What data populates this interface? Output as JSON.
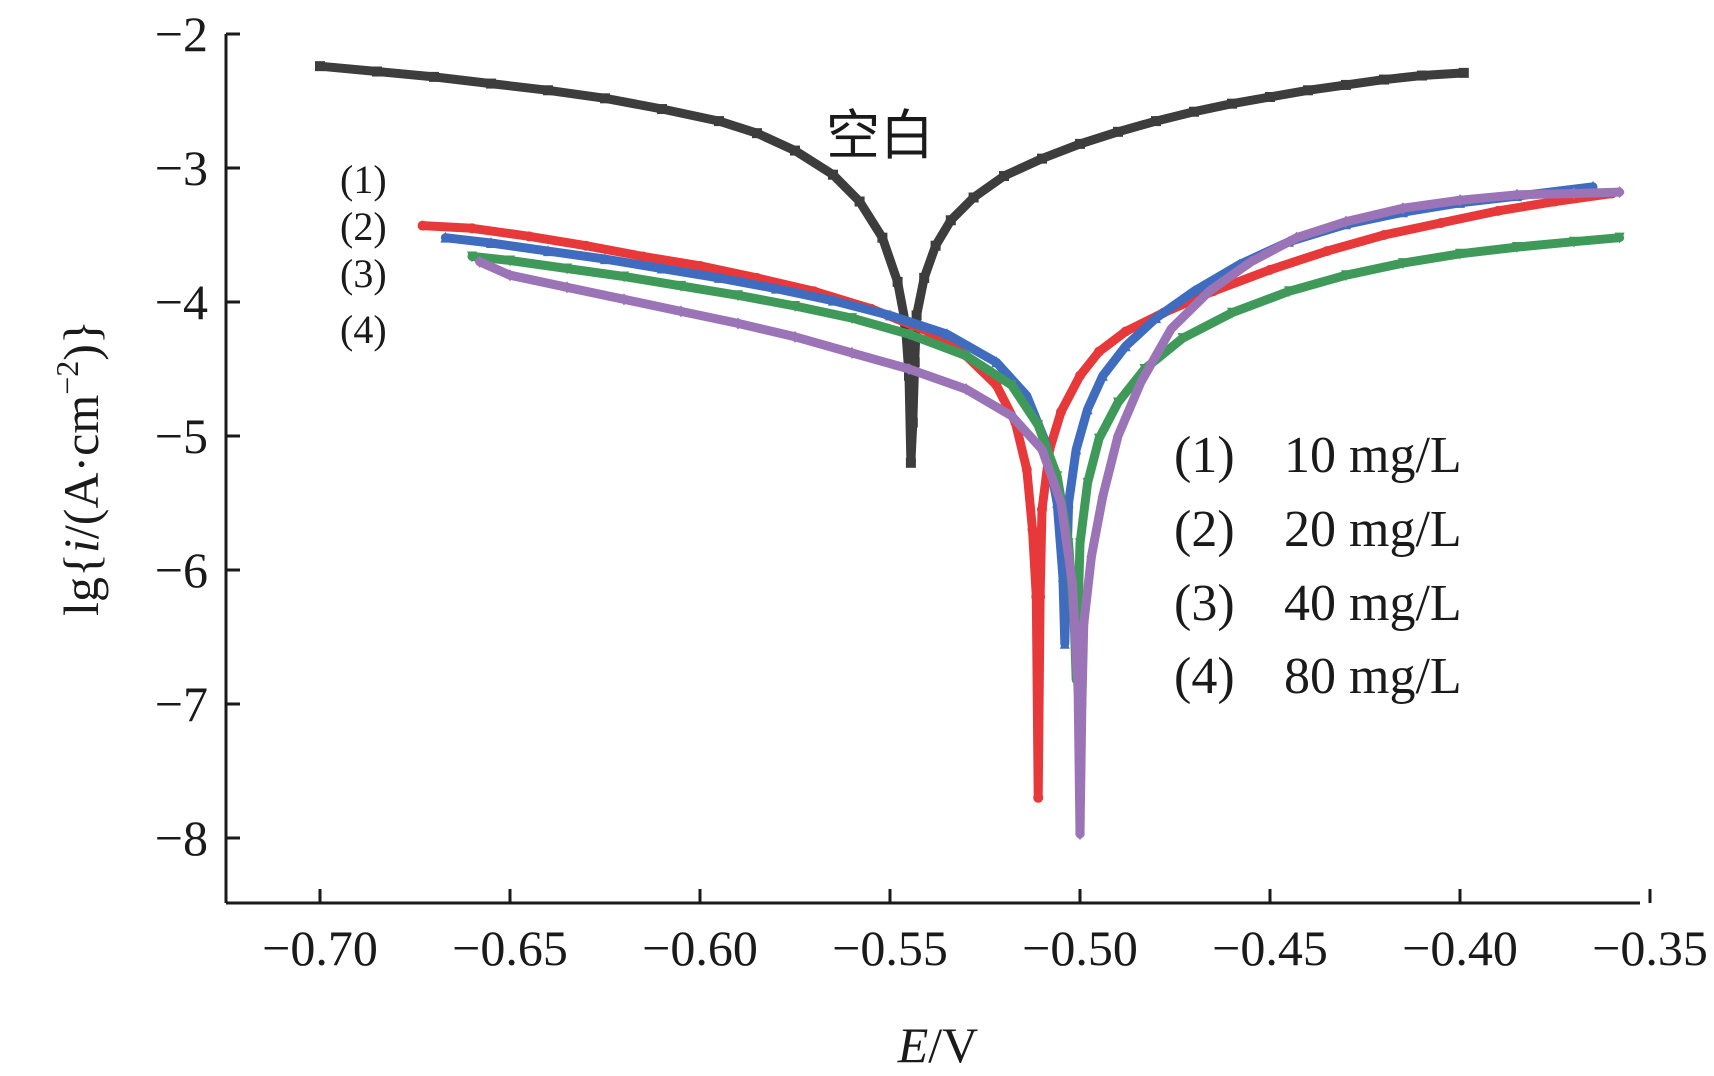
{
  "chart_data": {
    "type": "line",
    "title": "",
    "xlabel_italic": "E",
    "xlabel_unit": "/V",
    "ylabel_prefix": "lg{",
    "ylabel_italic": "i",
    "ylabel_mid": "/(A·cm",
    "ylabel_sup": "−2",
    "ylabel_suffix": ")}",
    "xlim": [
      -0.725,
      -0.35
    ],
    "ylim": [
      -8.5,
      -2
    ],
    "xticks": [
      -0.7,
      -0.65,
      -0.6,
      -0.55,
      -0.5,
      -0.45,
      -0.4,
      -0.35
    ],
    "xtick_labels": [
      "−0.70",
      "−0.65",
      "−0.60",
      "−0.55",
      "−0.50",
      "−0.45",
      "−0.40",
      "−0.35"
    ],
    "yticks": [
      -2,
      -3,
      -4,
      -5,
      -6,
      -7,
      -8
    ],
    "ytick_labels": [
      "−2",
      "−3",
      "−4",
      "−5",
      "−6",
      "−7",
      "−8"
    ],
    "curve_label": "空白",
    "side_labels": [
      "(1)",
      "(2)",
      "(3)",
      "(4)"
    ],
    "legend": [
      {
        "key": "(1)",
        "text": "10 mg/L"
      },
      {
        "key": "(2)",
        "text": "20 mg/L"
      },
      {
        "key": "(3)",
        "text": "40 mg/L"
      },
      {
        "key": "(4)",
        "text": "80 mg/L"
      }
    ],
    "series": [
      {
        "name": "空白",
        "color": "#3d3d3d",
        "marker": "square",
        "x": [
          -0.7,
          -0.685,
          -0.67,
          -0.655,
          -0.64,
          -0.625,
          -0.61,
          -0.595,
          -0.585,
          -0.575,
          -0.565,
          -0.558,
          -0.552,
          -0.548,
          -0.546,
          -0.545,
          -0.5445,
          -0.544,
          -0.5435,
          -0.543,
          -0.541,
          -0.538,
          -0.534,
          -0.528,
          -0.52,
          -0.51,
          -0.5,
          -0.49,
          -0.48,
          -0.47,
          -0.46,
          -0.45,
          -0.44,
          -0.43,
          -0.42,
          -0.41,
          -0.399
        ],
        "y": [
          -2.24,
          -2.28,
          -2.32,
          -2.37,
          -2.42,
          -2.48,
          -2.56,
          -2.65,
          -2.74,
          -2.87,
          -3.05,
          -3.25,
          -3.52,
          -3.85,
          -4.15,
          -4.55,
          -5.2,
          -4.9,
          -4.45,
          -4.1,
          -3.82,
          -3.58,
          -3.39,
          -3.22,
          -3.06,
          -2.93,
          -2.82,
          -2.73,
          -2.65,
          -2.58,
          -2.52,
          -2.47,
          -2.42,
          -2.38,
          -2.34,
          -2.31,
          -2.29
        ]
      },
      {
        "name": "(1) 10 mg/L",
        "color": "#e8393a",
        "marker": "circle",
        "x": [
          -0.673,
          -0.66,
          -0.645,
          -0.63,
          -0.615,
          -0.6,
          -0.585,
          -0.57,
          -0.555,
          -0.54,
          -0.53,
          -0.522,
          -0.517,
          -0.514,
          -0.5125,
          -0.5115,
          -0.511,
          -0.5105,
          -0.51,
          -0.508,
          -0.505,
          -0.5,
          -0.495,
          -0.488,
          -0.478,
          -0.465,
          -0.45,
          -0.435,
          -0.42,
          -0.405,
          -0.39,
          -0.375,
          -0.36
        ],
        "y": [
          -3.43,
          -3.45,
          -3.51,
          -3.58,
          -3.66,
          -3.73,
          -3.82,
          -3.92,
          -4.05,
          -4.22,
          -4.4,
          -4.62,
          -4.9,
          -5.25,
          -5.7,
          -6.2,
          -7.7,
          -6.2,
          -5.55,
          -5.1,
          -4.82,
          -4.55,
          -4.37,
          -4.22,
          -4.08,
          -3.92,
          -3.76,
          -3.62,
          -3.5,
          -3.41,
          -3.32,
          -3.25,
          -3.19
        ]
      },
      {
        "name": "(2) 20 mg/L",
        "color": "#3f6cbf",
        "marker": "triangle",
        "x": [
          -0.667,
          -0.655,
          -0.64,
          -0.625,
          -0.61,
          -0.595,
          -0.58,
          -0.565,
          -0.55,
          -0.535,
          -0.522,
          -0.514,
          -0.509,
          -0.506,
          -0.5045,
          -0.504,
          -0.5035,
          -0.503,
          -0.501,
          -0.498,
          -0.494,
          -0.488,
          -0.48,
          -0.47,
          -0.458,
          -0.445,
          -0.43,
          -0.415,
          -0.4,
          -0.385,
          -0.365
        ],
        "y": [
          -3.52,
          -3.56,
          -3.62,
          -3.68,
          -3.75,
          -3.82,
          -3.9,
          -3.99,
          -4.1,
          -4.24,
          -4.45,
          -4.7,
          -5.05,
          -5.5,
          -6.05,
          -6.55,
          -6.0,
          -5.5,
          -5.1,
          -4.8,
          -4.55,
          -4.33,
          -4.12,
          -3.92,
          -3.72,
          -3.55,
          -3.42,
          -3.33,
          -3.26,
          -3.21,
          -3.14
        ]
      },
      {
        "name": "(3) 40 mg/L",
        "color": "#3f9a5a",
        "marker": "triangle-down",
        "x": [
          -0.66,
          -0.65,
          -0.635,
          -0.62,
          -0.605,
          -0.59,
          -0.575,
          -0.56,
          -0.545,
          -0.53,
          -0.518,
          -0.511,
          -0.506,
          -0.503,
          -0.5015,
          -0.501,
          -0.5005,
          -0.5,
          -0.498,
          -0.495,
          -0.49,
          -0.483,
          -0.473,
          -0.46,
          -0.445,
          -0.43,
          -0.415,
          -0.4,
          -0.385,
          -0.37,
          -0.358
        ],
        "y": [
          -3.66,
          -3.69,
          -3.75,
          -3.81,
          -3.88,
          -3.95,
          -4.03,
          -4.12,
          -4.24,
          -4.4,
          -4.62,
          -4.92,
          -5.3,
          -5.8,
          -6.4,
          -6.82,
          -6.3,
          -5.8,
          -5.35,
          -5.02,
          -4.75,
          -4.5,
          -4.27,
          -4.08,
          -3.92,
          -3.8,
          -3.71,
          -3.64,
          -3.59,
          -3.55,
          -3.52
        ]
      },
      {
        "name": "(4) 80 mg/L",
        "color": "#9b74b8",
        "marker": "diamond",
        "x": [
          -0.658,
          -0.65,
          -0.635,
          -0.62,
          -0.605,
          -0.59,
          -0.575,
          -0.56,
          -0.545,
          -0.53,
          -0.518,
          -0.51,
          -0.505,
          -0.502,
          -0.5005,
          -0.5,
          -0.4995,
          -0.499,
          -0.497,
          -0.494,
          -0.49,
          -0.484,
          -0.476,
          -0.466,
          -0.455,
          -0.443,
          -0.43,
          -0.415,
          -0.4,
          -0.385,
          -0.37,
          -0.358
        ],
        "y": [
          -3.7,
          -3.8,
          -3.89,
          -3.98,
          -4.07,
          -4.16,
          -4.26,
          -4.38,
          -4.5,
          -4.65,
          -4.85,
          -5.1,
          -5.5,
          -6.1,
          -6.9,
          -7.97,
          -7.0,
          -6.4,
          -5.9,
          -5.45,
          -5.0,
          -4.6,
          -4.2,
          -3.92,
          -3.7,
          -3.52,
          -3.4,
          -3.3,
          -3.24,
          -3.2,
          -3.19,
          -3.18
        ]
      }
    ]
  }
}
